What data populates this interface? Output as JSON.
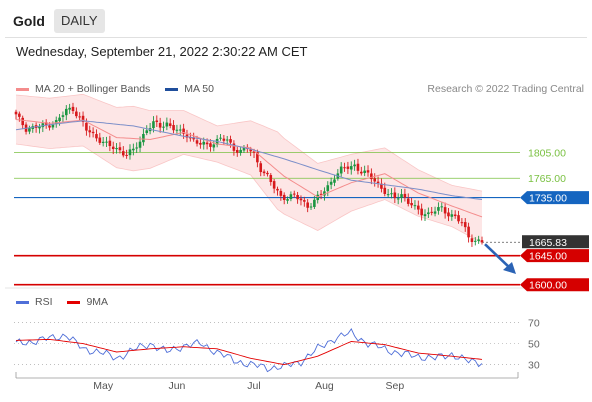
{
  "header": {
    "title": "Gold",
    "tab": "DAILY"
  },
  "timestamp": "Wednesday, September 21, 2022 2:30:22 AM CET",
  "credit": "Research © 2022 Trading Central",
  "legend": {
    "bollinger": "MA 20 + Bollinger Bands",
    "ma50": "MA 50",
    "rsi": "RSI",
    "rsi_ma": "9MA"
  },
  "colors": {
    "bull": "#1a9641",
    "bear": "#d7191c",
    "bollinger": "#f48c8c",
    "ma50": "#1f4e9c",
    "green_level": "#7ac142",
    "blue_level": "#1565c0",
    "red_level": "#d50000",
    "current": "#333333",
    "rsi": "#4f6fd8",
    "rsi_ma": "#e30000"
  },
  "chart_data": [
    {
      "type": "candlestick",
      "title": "",
      "x_labels": [
        "May",
        "Jun",
        "Jul",
        "Aug",
        "Sep"
      ],
      "y_unit": "USD",
      "ylim": [
        1598,
        1880
      ],
      "levels": [
        {
          "label": "1805.00",
          "value": 1805,
          "role": "resistance"
        },
        {
          "label": "1765.00",
          "value": 1765,
          "role": "resistance"
        },
        {
          "label": "1735.00",
          "value": 1735,
          "role": "pivot"
        },
        {
          "label": "1645.00",
          "value": 1645,
          "role": "support"
        },
        {
          "label": "1600.00",
          "value": 1600,
          "role": "support"
        }
      ],
      "current_price": {
        "label": "1665.83",
        "value": 1665.83
      },
      "close_path": [
        [
          0,
          1862
        ],
        [
          3,
          1842
        ],
        [
          6,
          1844
        ],
        [
          9,
          1847
        ],
        [
          12,
          1852
        ],
        [
          15,
          1870
        ],
        [
          17,
          1873
        ],
        [
          19,
          1858
        ],
        [
          21,
          1840
        ],
        [
          23,
          1832
        ],
        [
          25,
          1825
        ],
        [
          27,
          1817
        ],
        [
          29,
          1812
        ],
        [
          31,
          1808
        ],
        [
          33,
          1802
        ],
        [
          35,
          1808
        ],
        [
          37,
          1822
        ],
        [
          39,
          1842
        ],
        [
          41,
          1850
        ],
        [
          43,
          1845
        ],
        [
          45,
          1850
        ],
        [
          47,
          1843
        ],
        [
          49,
          1835
        ],
        [
          51,
          1832
        ],
        [
          53,
          1824
        ],
        [
          55,
          1818
        ],
        [
          57,
          1815
        ],
        [
          59,
          1820
        ],
        [
          61,
          1828
        ],
        [
          63,
          1822
        ],
        [
          65,
          1810
        ],
        [
          67,
          1808
        ],
        [
          69,
          1812
        ],
        [
          71,
          1800
        ],
        [
          73,
          1780
        ],
        [
          75,
          1768
        ],
        [
          77,
          1750
        ],
        [
          79,
          1736
        ],
        [
          81,
          1736
        ],
        [
          83,
          1738
        ],
        [
          85,
          1730
        ],
        [
          87,
          1722
        ],
        [
          89,
          1730
        ],
        [
          91,
          1740
        ],
        [
          93,
          1752
        ],
        [
          95,
          1768
        ],
        [
          97,
          1778
        ],
        [
          99,
          1782
        ],
        [
          101,
          1785
        ],
        [
          103,
          1775
        ],
        [
          105,
          1770
        ],
        [
          107,
          1762
        ],
        [
          109,
          1750
        ],
        [
          111,
          1738
        ],
        [
          113,
          1735
        ],
        [
          115,
          1740
        ],
        [
          117,
          1728
        ],
        [
          119,
          1718
        ],
        [
          121,
          1712
        ],
        [
          123,
          1710
        ],
        [
          125,
          1715
        ],
        [
          127,
          1718
        ],
        [
          129,
          1710
        ],
        [
          131,
          1705
        ],
        [
          133,
          1695
        ],
        [
          135,
          1675
        ],
        [
          137,
          1668
        ],
        [
          139,
          1665.83
        ]
      ],
      "ma20_path": [
        [
          0,
          1856
        ],
        [
          10,
          1850
        ],
        [
          20,
          1855
        ],
        [
          30,
          1828
        ],
        [
          40,
          1825
        ],
        [
          50,
          1836
        ],
        [
          60,
          1818
        ],
        [
          70,
          1812
        ],
        [
          80,
          1768
        ],
        [
          90,
          1736
        ],
        [
          100,
          1758
        ],
        [
          110,
          1772
        ],
        [
          120,
          1742
        ],
        [
          130,
          1722
        ],
        [
          139,
          1705
        ]
      ],
      "bollinger_width": [
        [
          0,
          38
        ],
        [
          20,
          40
        ],
        [
          35,
          50
        ],
        [
          50,
          34
        ],
        [
          60,
          28
        ],
        [
          70,
          42
        ],
        [
          78,
          60
        ],
        [
          90,
          52
        ],
        [
          100,
          44
        ],
        [
          110,
          40
        ],
        [
          120,
          36
        ],
        [
          130,
          32
        ],
        [
          139,
          40
        ]
      ],
      "ma50_path": [
        [
          0,
          1840
        ],
        [
          10,
          1848
        ],
        [
          20,
          1854
        ],
        [
          35,
          1846
        ],
        [
          50,
          1830
        ],
        [
          60,
          1822
        ],
        [
          70,
          1810
        ],
        [
          80,
          1795
        ],
        [
          90,
          1778
        ],
        [
          100,
          1762
        ],
        [
          110,
          1755
        ],
        [
          120,
          1748
        ],
        [
          130,
          1738
        ],
        [
          139,
          1732
        ]
      ]
    },
    {
      "type": "line",
      "title": "",
      "ylim": [
        23,
        80
      ],
      "y_ticks": [
        "70",
        "50",
        "30"
      ],
      "series": [
        {
          "name": "RSI",
          "values": [
            [
              0,
              50
            ],
            [
              5,
              52
            ],
            [
              10,
              55
            ],
            [
              15,
              58
            ],
            [
              20,
              45
            ],
            [
              25,
              42
            ],
            [
              30,
              36
            ],
            [
              35,
              44
            ],
            [
              40,
              50
            ],
            [
              45,
              42
            ],
            [
              50,
              48
            ],
            [
              55,
              50
            ],
            [
              60,
              42
            ],
            [
              65,
              34
            ],
            [
              70,
              30
            ],
            [
              75,
              27
            ],
            [
              80,
              28
            ],
            [
              85,
              33
            ],
            [
              90,
              45
            ],
            [
              95,
              55
            ],
            [
              100,
              60
            ],
            [
              105,
              50
            ],
            [
              110,
              45
            ],
            [
              115,
              40
            ],
            [
              120,
              38
            ],
            [
              125,
              36
            ],
            [
              130,
              40
            ],
            [
              135,
              33
            ],
            [
              139,
              32
            ]
          ]
        },
        {
          "name": "9MA",
          "values": [
            [
              0,
              53
            ],
            [
              10,
              54
            ],
            [
              20,
              50
            ],
            [
              30,
              42
            ],
            [
              40,
              45
            ],
            [
              50,
              47
            ],
            [
              60,
              45
            ],
            [
              70,
              36
            ],
            [
              80,
              30
            ],
            [
              90,
              38
            ],
            [
              100,
              52
            ],
            [
              110,
              49
            ],
            [
              120,
              41
            ],
            [
              130,
              38
            ],
            [
              139,
              35
            ]
          ]
        }
      ]
    }
  ]
}
